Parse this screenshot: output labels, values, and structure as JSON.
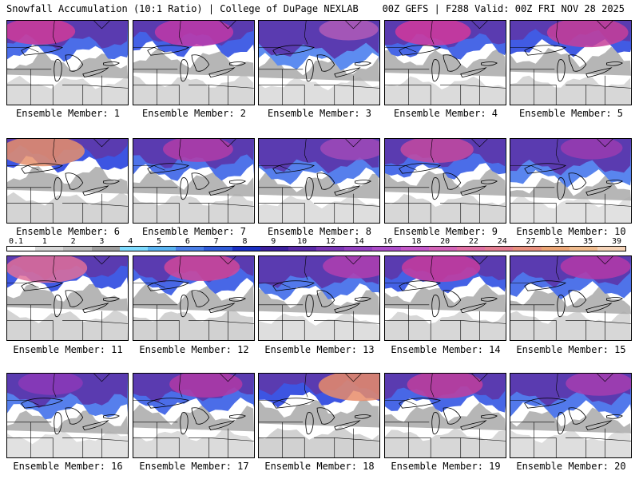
{
  "header": {
    "title": "Snowfall Accumulation (10:1 Ratio) | College of DuPage NEXLAB",
    "run_info": "00Z GEFS | F288 Valid: 00Z FRI NOV 28 2025"
  },
  "colorbar": {
    "ticks": [
      "0.1",
      "1",
      "2",
      "3",
      "4",
      "5",
      "6",
      "7",
      "8",
      "9",
      "10",
      "12",
      "14",
      "16",
      "18",
      "20",
      "22",
      "24",
      "27",
      "31",
      "35",
      "39"
    ],
    "colors": [
      "#ffffff",
      "#d9d9d9",
      "#bfbfbf",
      "#9e9e9e",
      "#7fdcff",
      "#5ab4f2",
      "#4a7fe8",
      "#2f5bd9",
      "#1a2fc4",
      "#3c1f9e",
      "#5a2aa8",
      "#7a36b4",
      "#9440c0",
      "#ac4cc8",
      "#c458c8",
      "#d464b8",
      "#e070a4",
      "#e47e92",
      "#e8907e",
      "#eca676",
      "#f0bc8e",
      "#f6d4b8"
    ]
  },
  "members": [
    {
      "label": "Ensemble Member: 1",
      "snow": {
        "north": 0.75,
        "mid": 0.45,
        "south": 0.15
      },
      "peak_color": "#d03c9a"
    },
    {
      "label": "Ensemble Member: 2",
      "snow": {
        "north": 0.85,
        "mid": 0.55,
        "south": 0.2
      },
      "peak_color": "#c03aa8"
    },
    {
      "label": "Ensemble Member: 3",
      "snow": {
        "north": 0.5,
        "mid": 0.3,
        "south": 0.1
      },
      "peak_color": "#b05cb8"
    },
    {
      "label": "Ensemble Member: 4",
      "snow": {
        "north": 0.8,
        "mid": 0.55,
        "south": 0.15
      },
      "peak_color": "#d23a9c"
    },
    {
      "label": "Ensemble Member: 5",
      "snow": {
        "north": 0.9,
        "mid": 0.6,
        "south": 0.2
      },
      "peak_color": "#c73f9a"
    },
    {
      "label": "Ensemble Member: 6",
      "snow": {
        "north": 0.95,
        "mid": 0.6,
        "south": 0.25
      },
      "peak_color": "#e6906c"
    },
    {
      "label": "Ensemble Member: 7",
      "snow": {
        "north": 0.7,
        "mid": 0.45,
        "south": 0.2
      },
      "peak_color": "#b23da8"
    },
    {
      "label": "Ensemble Member: 8",
      "snow": {
        "north": 0.6,
        "mid": 0.35,
        "south": 0.1
      },
      "peak_color": "#a04ab8"
    },
    {
      "label": "Ensemble Member: 9",
      "snow": {
        "north": 0.75,
        "mid": 0.5,
        "south": 0.2
      },
      "peak_color": "#c44aa0"
    },
    {
      "label": "Ensemble Member: 10",
      "snow": {
        "north": 0.55,
        "mid": 0.25,
        "south": 0.05
      },
      "peak_color": "#9a3cb0"
    },
    {
      "label": "Ensemble Member: 11",
      "snow": {
        "north": 0.9,
        "mid": 0.6,
        "south": 0.25
      },
      "peak_color": "#e0709a"
    },
    {
      "label": "Ensemble Member: 12",
      "snow": {
        "north": 0.8,
        "mid": 0.55,
        "south": 0.3
      },
      "peak_color": "#d0489a"
    },
    {
      "label": "Ensemble Member: 13",
      "snow": {
        "north": 0.65,
        "mid": 0.4,
        "south": 0.1
      },
      "peak_color": "#b040b0"
    },
    {
      "label": "Ensemble Member: 14",
      "snow": {
        "north": 0.85,
        "mid": 0.55,
        "south": 0.2
      },
      "peak_color": "#c83c9e"
    },
    {
      "label": "Ensemble Member: 15",
      "snow": {
        "north": 0.7,
        "mid": 0.45,
        "south": 0.2
      },
      "peak_color": "#b43aa8"
    },
    {
      "label": "Ensemble Member: 16",
      "snow": {
        "north": 0.6,
        "mid": 0.3,
        "south": 0.05
      },
      "peak_color": "#8c3ab8"
    },
    {
      "label": "Ensemble Member: 17",
      "snow": {
        "north": 0.75,
        "mid": 0.45,
        "south": 0.15
      },
      "peak_color": "#b03aa6"
    },
    {
      "label": "Ensemble Member: 18",
      "snow": {
        "north": 0.95,
        "mid": 0.65,
        "south": 0.3
      },
      "peak_color": "#e88c6a"
    },
    {
      "label": "Ensemble Member: 19",
      "snow": {
        "north": 0.8,
        "mid": 0.5,
        "south": 0.2
      },
      "peak_color": "#c0409e"
    },
    {
      "label": "Ensemble Member: 20",
      "snow": {
        "north": 0.65,
        "mid": 0.35,
        "south": 0.1
      },
      "peak_color": "#a63eb0"
    }
  ]
}
